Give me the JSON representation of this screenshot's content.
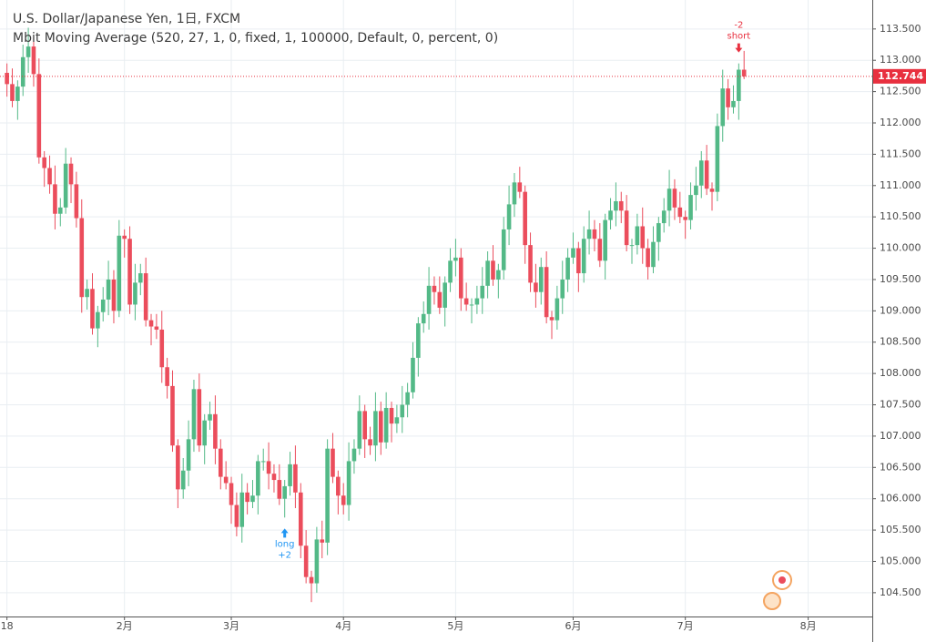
{
  "chart_data": {
    "type": "candlestick",
    "title": "U.S. Dollar/Japanese Yen, 1日, FXCM",
    "subtitle": "Mbit Moving Average (520, 27, 1, 0, fixed, 1, 100000, Default, 0, percent, 0)",
    "xlim": [
      -1.3,
      162
    ],
    "xticks": [
      {
        "value": 0,
        "label": "18"
      },
      {
        "value": 22,
        "label": "2月"
      },
      {
        "value": 42,
        "label": "3月"
      },
      {
        "value": 63,
        "label": "4月"
      },
      {
        "value": 84,
        "label": "5月"
      },
      {
        "value": 106,
        "label": "6月"
      },
      {
        "value": 127,
        "label": "7月"
      },
      {
        "value": 150,
        "label": "8月"
      }
    ],
    "ylim": [
      104.12,
      113.89
    ],
    "yticks": [
      {
        "value": 104.5,
        "label": "104.500"
      },
      {
        "value": 105,
        "label": "105.000"
      },
      {
        "value": 105.5,
        "label": "105.500"
      },
      {
        "value": 106,
        "label": "106.000"
      },
      {
        "value": 106.5,
        "label": "106.500"
      },
      {
        "value": 107,
        "label": "107.000"
      },
      {
        "value": 107.5,
        "label": "107.500"
      },
      {
        "value": 108,
        "label": "108.000"
      },
      {
        "value": 108.5,
        "label": "108.500"
      },
      {
        "value": 109,
        "label": "109.000"
      },
      {
        "value": 109.5,
        "label": "109.500"
      },
      {
        "value": 110,
        "label": "110.000"
      },
      {
        "value": 110.5,
        "label": "110.500"
      },
      {
        "value": 111,
        "label": "111.000"
      },
      {
        "value": 111.5,
        "label": "111.500"
      },
      {
        "value": 112,
        "label": "112.000"
      },
      {
        "value": 112.5,
        "label": "112.500"
      },
      {
        "value": 113,
        "label": "113.000"
      },
      {
        "value": 113.5,
        "label": "113.500"
      }
    ],
    "grid": true,
    "up_color": "#53b987",
    "down_color": "#eb4d5c",
    "last_price": 112.744,
    "last_price_color": "#e8303f",
    "series": [
      {
        "open": [
          112.8,
          112.62,
          112.35,
          112.58,
          113.05,
          113.22,
          112.78,
          111.45,
          111.28,
          111.02,
          110.55,
          110.65,
          111.35,
          111.02,
          110.48,
          109.22,
          109.35,
          108.72,
          108.98,
          109.18,
          109.5,
          109.0,
          110.2,
          110.15,
          109.1,
          109.45,
          109.6,
          108.85,
          108.75,
          108.7,
          108.1,
          107.8,
          106.85,
          106.15,
          106.45,
          106.95,
          107.75,
          106.85,
          107.25,
          107.35,
          106.8,
          106.35,
          106.25,
          105.9,
          105.55,
          106.1,
          105.95,
          106.05,
          106.6,
          106.6,
          106.4,
          106.3,
          106.0,
          106.2,
          106.55,
          106.1,
          105.25,
          104.75,
          104.65,
          105.35,
          105.3,
          106.8,
          106.35,
          106.05,
          105.9,
          106.6,
          106.8,
          107.4,
          106.95,
          106.85,
          107.4,
          106.9,
          107.45,
          107.2,
          107.3,
          107.5,
          107.7,
          108.25,
          108.8,
          108.95,
          109.4,
          109.3,
          109.05,
          109.45,
          109.8,
          109.85,
          109.2,
          109.1,
          109.1,
          109.2,
          109.4,
          109.8,
          109.5,
          109.65,
          110.3,
          110.7,
          111.05,
          110.9,
          110.05,
          109.45,
          109.3,
          109.7,
          108.9,
          108.85,
          109.2,
          109.5,
          109.85,
          110.0,
          109.6,
          110.15,
          110.3,
          110.15,
          109.8,
          110.45,
          110.6,
          110.75,
          110.6,
          110.05,
          110.05,
          110.35,
          110.0,
          109.7,
          110.1,
          110.4,
          110.6,
          110.95,
          110.65,
          110.5,
          110.45,
          110.85,
          111.0,
          111.4,
          110.95,
          110.9,
          111.95,
          112.55,
          112.25,
          112.35,
          112.85
        ],
        "high": [
          112.95,
          112.87,
          112.68,
          113.25,
          113.52,
          113.37,
          113.03,
          111.55,
          111.48,
          111.32,
          110.8,
          111.6,
          111.45,
          111.22,
          110.78,
          109.5,
          109.6,
          109.08,
          109.38,
          109.8,
          109.65,
          110.45,
          110.3,
          110.35,
          109.75,
          109.75,
          109.85,
          108.95,
          108.95,
          109.0,
          108.25,
          108.05,
          106.95,
          106.65,
          107.25,
          107.9,
          108.0,
          107.35,
          107.55,
          107.65,
          106.95,
          106.6,
          106.35,
          106.1,
          106.4,
          106.25,
          106.3,
          106.7,
          106.8,
          106.9,
          106.55,
          106.55,
          106.3,
          106.75,
          106.85,
          106.25,
          105.5,
          104.85,
          105.55,
          105.65,
          106.95,
          107.05,
          106.45,
          106.25,
          106.9,
          106.95,
          107.65,
          107.5,
          107.15,
          107.7,
          107.55,
          107.7,
          107.55,
          107.5,
          107.8,
          107.85,
          108.5,
          108.9,
          109.15,
          109.7,
          109.55,
          109.55,
          109.55,
          110.0,
          110.15,
          110.0,
          109.45,
          109.2,
          109.4,
          109.7,
          109.95,
          110.05,
          109.75,
          110.5,
          111.0,
          111.2,
          111.3,
          111.0,
          110.25,
          109.75,
          109.85,
          109.95,
          109.0,
          109.4,
          109.8,
          110.0,
          110.25,
          110.1,
          110.35,
          110.6,
          110.45,
          110.4,
          110.55,
          110.8,
          111.05,
          110.9,
          110.85,
          110.15,
          110.55,
          110.65,
          110.15,
          110.35,
          110.5,
          110.8,
          111.25,
          111.1,
          110.9,
          110.6,
          111.05,
          111.3,
          111.55,
          111.65,
          111.05,
          112.15,
          112.85,
          112.7,
          112.6,
          112.95,
          113.15
        ],
        "low": [
          112.42,
          112.25,
          112.05,
          112.43,
          112.8,
          112.58,
          111.35,
          110.98,
          110.87,
          110.3,
          110.35,
          110.55,
          110.72,
          110.33,
          108.97,
          109.02,
          108.62,
          108.42,
          108.83,
          108.93,
          108.8,
          108.9,
          109.85,
          108.95,
          108.85,
          109.25,
          108.75,
          108.45,
          108.55,
          107.85,
          107.6,
          106.75,
          105.85,
          106.0,
          106.2,
          106.75,
          106.75,
          106.55,
          107.1,
          106.55,
          106.15,
          106.15,
          105.6,
          105.4,
          105.3,
          105.75,
          105.85,
          105.75,
          106.45,
          106.15,
          106.1,
          105.9,
          105.7,
          106.05,
          105.85,
          105.05,
          104.65,
          104.35,
          104.5,
          105.05,
          105.1,
          106.25,
          105.75,
          105.75,
          105.65,
          106.4,
          106.7,
          106.65,
          106.7,
          106.6,
          106.7,
          106.8,
          106.9,
          107.05,
          107.05,
          107.3,
          107.6,
          107.95,
          108.65,
          108.7,
          109.1,
          108.95,
          108.75,
          109.3,
          109.55,
          109.0,
          109.0,
          108.8,
          108.95,
          108.95,
          109.2,
          109.4,
          109.2,
          109.5,
          110.05,
          110.5,
          110.8,
          109.75,
          109.3,
          109.05,
          109.1,
          108.8,
          108.55,
          108.7,
          108.95,
          109.3,
          109.75,
          109.3,
          109.45,
          109.9,
          109.95,
          109.7,
          109.5,
          110.3,
          110.35,
          110.4,
          109.95,
          109.75,
          109.9,
          109.75,
          109.5,
          109.6,
          109.8,
          110.25,
          110.35,
          110.45,
          110.4,
          110.15,
          110.3,
          110.6,
          110.8,
          110.85,
          110.6,
          110.75,
          111.7,
          112.05,
          112.15,
          112.05,
          112.7
        ],
        "close": [
          112.62,
          112.35,
          112.58,
          113.05,
          113.22,
          112.78,
          111.45,
          111.28,
          111.02,
          110.55,
          110.65,
          111.35,
          111.02,
          110.48,
          109.22,
          109.35,
          108.72,
          108.98,
          109.18,
          109.5,
          109.0,
          110.2,
          110.15,
          109.1,
          109.45,
          109.6,
          108.85,
          108.75,
          108.7,
          108.1,
          107.8,
          106.85,
          106.15,
          106.45,
          106.95,
          107.75,
          106.85,
          107.25,
          107.35,
          106.8,
          106.35,
          106.25,
          105.9,
          105.55,
          106.1,
          105.95,
          106.05,
          106.6,
          106.6,
          106.4,
          106.3,
          106.0,
          106.2,
          106.55,
          106.1,
          105.25,
          104.75,
          104.65,
          105.35,
          105.3,
          106.8,
          106.35,
          106.05,
          105.9,
          106.6,
          106.8,
          107.4,
          106.95,
          106.85,
          107.4,
          106.9,
          107.45,
          107.2,
          107.3,
          107.5,
          107.7,
          108.25,
          108.8,
          108.95,
          109.4,
          109.3,
          109.05,
          109.45,
          109.8,
          109.85,
          109.2,
          109.1,
          109.1,
          109.2,
          109.4,
          109.8,
          109.5,
          109.65,
          110.3,
          110.7,
          111.05,
          110.9,
          110.05,
          109.45,
          109.3,
          109.7,
          108.9,
          108.85,
          109.2,
          109.5,
          109.85,
          110.0,
          109.6,
          110.15,
          110.3,
          110.15,
          109.8,
          110.45,
          110.6,
          110.75,
          110.6,
          110.05,
          110.05,
          110.35,
          110.0,
          109.7,
          110.1,
          110.4,
          110.6,
          110.95,
          110.65,
          110.5,
          110.45,
          110.85,
          111.0,
          111.4,
          110.95,
          110.9,
          111.95,
          112.55,
          112.25,
          112.35,
          112.85,
          112.744
        ]
      }
    ],
    "signals": [
      {
        "x": 52,
        "side": "long",
        "label": "long",
        "qty": "+2",
        "color": "#2196f3"
      },
      {
        "x": 137,
        "side": "short",
        "label": "short",
        "qty": "-2",
        "color": "#e8303f"
      }
    ]
  }
}
